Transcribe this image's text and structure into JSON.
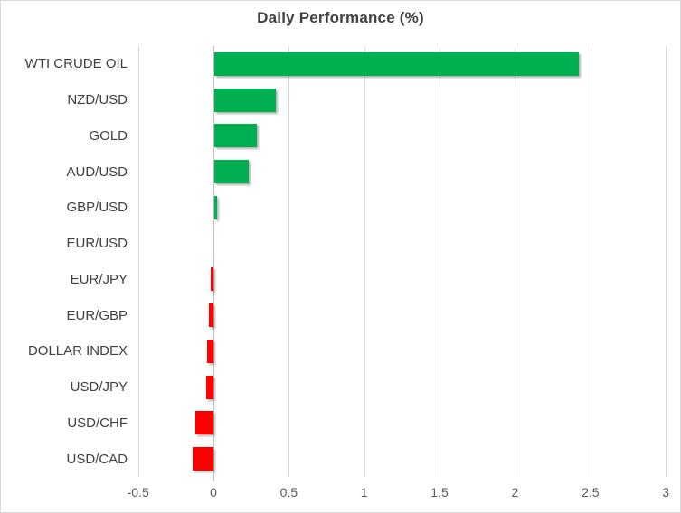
{
  "chart": {
    "title": "Daily Performance (%)"
  },
  "chart_data": {
    "type": "bar",
    "orientation": "horizontal",
    "title": "Daily Performance (%)",
    "xlabel": "",
    "ylabel": "",
    "xlim": [
      -0.5,
      3
    ],
    "grid": true,
    "legend": false,
    "categories": [
      "WTI CRUDE OIL",
      "NZD/USD",
      "GOLD",
      "AUD/USD",
      "GBP/USD",
      "EUR/USD",
      "EUR/JPY",
      "EUR/GBP",
      "DOLLAR INDEX",
      "USD/JPY",
      "USD/CHF",
      "USD/CAD"
    ],
    "values": [
      2.42,
      0.41,
      0.28,
      0.23,
      0.02,
      0.0,
      -0.02,
      -0.03,
      -0.04,
      -0.05,
      -0.12,
      -0.14
    ],
    "x_ticks": [
      {
        "value": -0.5,
        "label": "-0.5"
      },
      {
        "value": 0,
        "label": "0"
      },
      {
        "value": 0.5,
        "label": "0.5"
      },
      {
        "value": 1,
        "label": "1"
      },
      {
        "value": 1.5,
        "label": "1.5"
      },
      {
        "value": 2,
        "label": "2"
      },
      {
        "value": 2.5,
        "label": "2.5"
      },
      {
        "value": 3,
        "label": "3"
      }
    ],
    "colors": {
      "positive": "#00B050",
      "negative": "#FF0000",
      "gridline": "#D9D9D9",
      "axis_line": "#BFBFBF",
      "title_text": "#404040",
      "category_text": "#404040",
      "tick_text": "#595959",
      "border": "#D9D9D9",
      "background": "#FFFFFF"
    }
  }
}
